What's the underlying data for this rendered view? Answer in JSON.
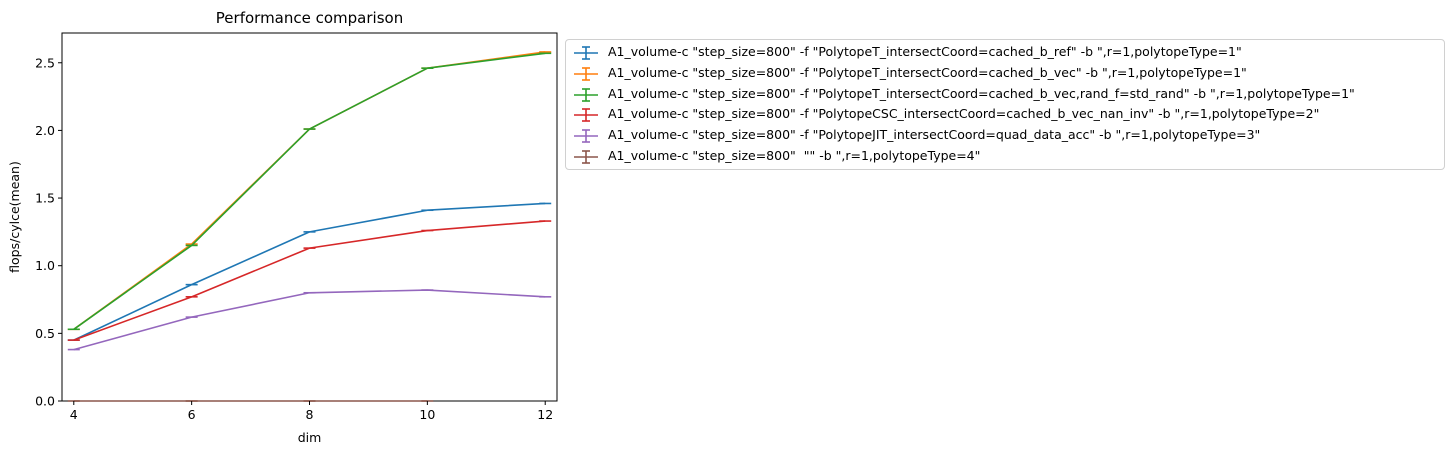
{
  "chart_data": {
    "type": "line",
    "title": "Performance comparison",
    "xlabel": "dim",
    "ylabel": "flops/cylce(mean)",
    "x": [
      4,
      6,
      8,
      10,
      12
    ],
    "x_ticks": [
      "4",
      "6",
      "8",
      "10",
      "12"
    ],
    "y_ticks": [
      "0.0",
      "0.5",
      "1.0",
      "1.5",
      "2.0",
      "2.5"
    ],
    "xlim": [
      3.8,
      12.2
    ],
    "ylim": [
      0.0,
      2.72
    ],
    "error_bars": true,
    "legend_position": "upper-left outside",
    "series": [
      {
        "name": "A1_volume-c \"step_size=800\" -f \"PolytopeT_intersectCoord=cached_b_ref\" -b \",r=1,polytopeType=1\"",
        "color": "#1f77b4",
        "values": [
          0.45,
          0.86,
          1.25,
          1.41,
          1.46
        ]
      },
      {
        "name": "A1_volume-c \"step_size=800\" -f \"PolytopeT_intersectCoord=cached_b_vec\" -b \",r=1,polytopeType=1\"",
        "color": "#ff7f0e",
        "values": [
          0.53,
          1.16,
          2.01,
          2.46,
          2.58
        ]
      },
      {
        "name": "A1_volume-c \"step_size=800\" -f \"PolytopeT_intersectCoord=cached_b_vec,rand_f=std_rand\" -b \",r=1,polytopeType=1\"",
        "color": "#2ca02c",
        "values": [
          0.53,
          1.15,
          2.01,
          2.46,
          2.57
        ]
      },
      {
        "name": "A1_volume-c \"step_size=800\" -f \"PolytopeCSC_intersectCoord=cached_b_vec_nan_inv\" -b \",r=1,polytopeType=2\"",
        "color": "#d62728",
        "values": [
          0.45,
          0.77,
          1.13,
          1.26,
          1.33
        ]
      },
      {
        "name": "A1_volume-c \"step_size=800\" -f \"PolytopeJIT_intersectCoord=quad_data_acc\" -b \",r=1,polytopeType=3\"",
        "color": "#9467bd",
        "values": [
          0.38,
          0.62,
          0.8,
          0.82,
          0.77
        ]
      },
      {
        "name": "A1_volume-c \"step_size=800\"  \"\" -b \",r=1,polytopeType=4\"",
        "color": "#8c564b",
        "values": [
          0.0,
          0.0,
          0.0,
          0.0,
          null
        ]
      }
    ]
  }
}
